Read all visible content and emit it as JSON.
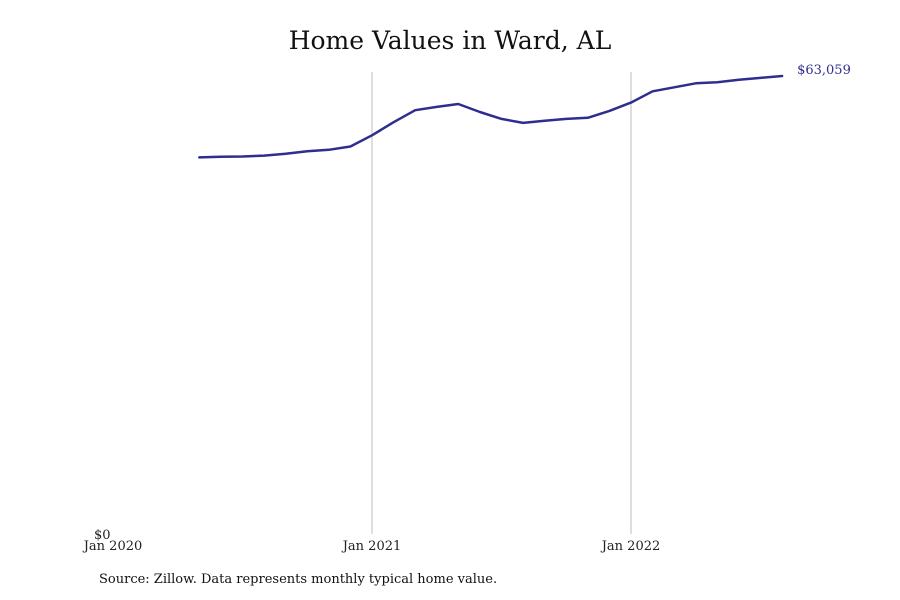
{
  "chart_data": {
    "type": "line",
    "title": "Home Values in Ward, AL",
    "xlabel": "",
    "ylabel": "",
    "x_tick_labels": [
      "Jan 2020",
      "Jan 2021",
      "Jan 2022"
    ],
    "y_tick_labels": [
      "$0"
    ],
    "ylim": [
      0,
      65000
    ],
    "grid": "vertical lines at Jan 2021 and Jan 2022",
    "end_label": "$63,059",
    "line_color": "#2e2e8f",
    "series": [
      {
        "x": [
          "2020-05",
          "2020-06",
          "2020-07",
          "2020-08",
          "2020-09",
          "2020-10",
          "2020-11",
          "2020-12",
          "2021-01",
          "2021-02",
          "2021-03",
          "2021-04",
          "2021-05",
          "2021-06",
          "2021-07",
          "2021-08",
          "2021-09",
          "2021-10",
          "2021-11",
          "2021-12",
          "2022-01",
          "2022-02",
          "2022-03",
          "2022-04",
          "2022-05",
          "2022-06",
          "2022-07",
          "2022-08"
        ],
        "values": [
          51850,
          51950,
          51980,
          52100,
          52350,
          52700,
          52900,
          53350,
          54900,
          56700,
          58350,
          58800,
          59200,
          58100,
          57150,
          56600,
          56900,
          57150,
          57300,
          58250,
          59400,
          60950,
          61500,
          62050,
          62200,
          62550,
          62800,
          63059
        ]
      }
    ]
  },
  "source_note": "Source: Zillow. Data represents monthly typical home value."
}
